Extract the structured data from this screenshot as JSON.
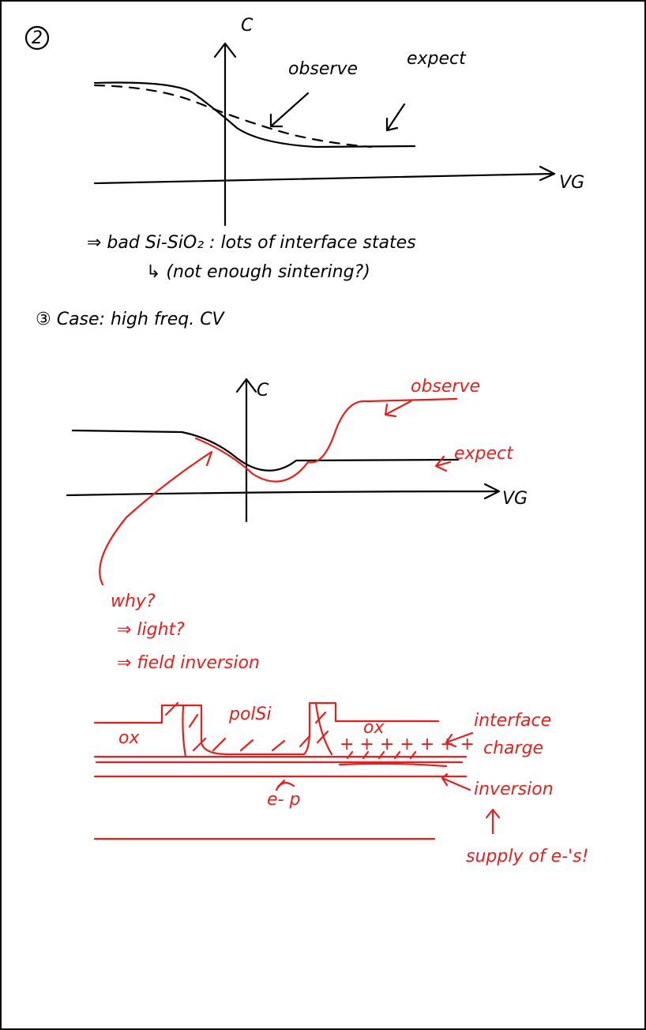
{
  "page": {
    "sketch1": {
      "number": "2",
      "y_label": "C",
      "x_label": "VG",
      "observe": "observe",
      "expect": "expect",
      "note": "⇒ bad Si-SiO₂ : lots of interface states",
      "subnote": "↳ (not enough sintering?)"
    },
    "sketch2": {
      "heading": "③ Case: high freq. CV",
      "y_label": "C",
      "x_label": "VG",
      "observe": "observe",
      "expect": "expect",
      "reasons": [
        "why?",
        "⇒ light?",
        "⇒ field inversion"
      ]
    },
    "diagram": {
      "polysi": "polSi",
      "ox_left": "ox",
      "ox_right": "ox",
      "charges": "+ + + + + + +",
      "interface_charge": [
        "interface",
        "charge"
      ],
      "carriers": "e- p",
      "inversion": "inversion",
      "supply": "supply of e-'s!"
    }
  }
}
